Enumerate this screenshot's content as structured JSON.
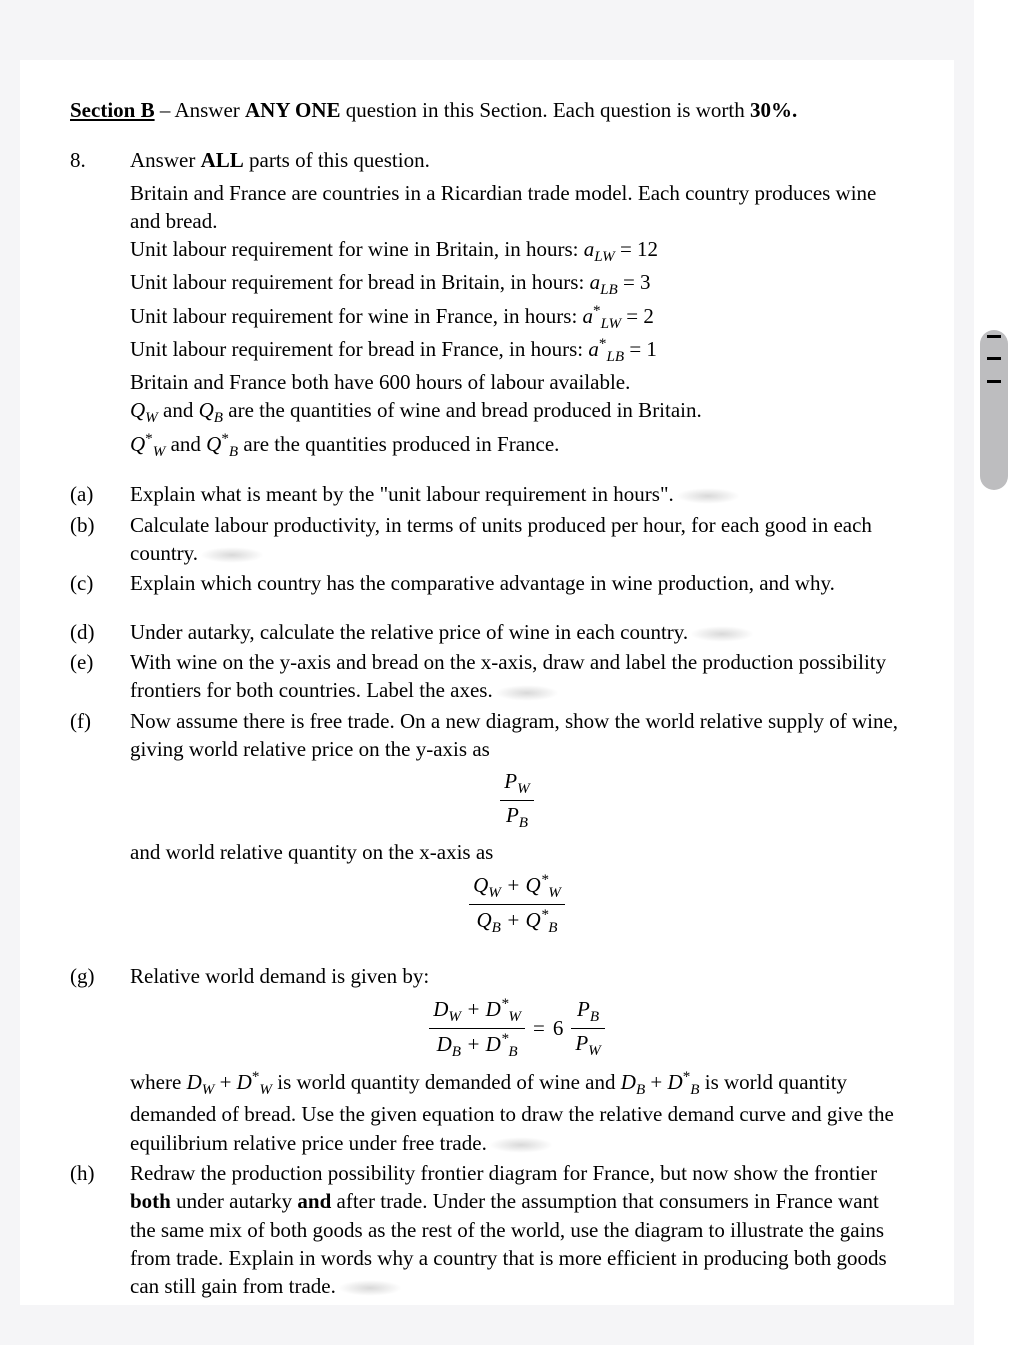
{
  "section": {
    "label": "Section B",
    "separator": " – ",
    "instruction_pre": "Answer ",
    "instruction_bold": "ANY ONE",
    "instruction_mid": " question in this Section. Each question is worth ",
    "percent": "30%.",
    "question_number": "8.",
    "q_instruction_pre": "Answer ",
    "q_instruction_bold": "ALL",
    "q_instruction_post": " parts of this question."
  },
  "intro": {
    "l1": "Britain and France are countries in a Ricardian trade model. Each country produces wine and bread.",
    "l2_pre": "Unit labour requirement for wine in Britain, in hours: ",
    "l2_sym": "a",
    "l2_sub": "LW",
    "l2_eq": " = 12",
    "l3_pre": "Unit labour requirement for bread in Britain, in hours: ",
    "l3_sym": "a",
    "l3_sub": "LB",
    "l3_eq": " = 3",
    "l4_pre": "Unit labour requirement for wine in France, in hours: ",
    "l4_sym": "a",
    "l4_sup": "*",
    "l4_sub": "LW",
    "l4_eq": " = 2",
    "l5_pre": "Unit labour requirement for bread in France, in hours: ",
    "l5_sym": "a",
    "l5_sup": "*",
    "l5_sub": "LB",
    "l5_eq": " = 1",
    "l6": "Britain and France both have 600 hours of labour available.",
    "l7_q1": "Q",
    "l7_sub1": "W",
    "l7_and": " and ",
    "l7_q2": "Q",
    "l7_sub2": "B",
    "l7_post": " are the quantities of wine and bread produced in Britain.",
    "l8_q1": "Q",
    "l8_sup1": "*",
    "l8_sub1": "W",
    "l8_and": " and ",
    "l8_q2": "Q",
    "l8_sup2": "*",
    "l8_sub2": "B",
    "l8_post": " are the quantities produced in France."
  },
  "parts": {
    "a": {
      "label": "(a)",
      "text": "Explain what is meant by the \"unit labour requirement in hours\"."
    },
    "b": {
      "label": "(b)",
      "text": "Calculate labour productivity, in terms of units produced per hour, for each good in each country."
    },
    "c": {
      "label": "(c)",
      "text": "Explain which country has the comparative advantage in wine production, and why."
    },
    "d": {
      "label": "(d)",
      "text": "Under autarky, calculate the relative price of wine in each country."
    },
    "e": {
      "label": "(e)",
      "text": "With wine on the y-axis and bread on the x-axis, draw and label the production possibility frontiers for both countries. Label the axes."
    },
    "f": {
      "label": "(f)",
      "text1": "Now assume there is free trade. On a new diagram, show the world relative supply of wine, giving world relative price on the y-axis as",
      "frac1_num_sym": "P",
      "frac1_num_sub": "W",
      "frac1_den_sym": "P",
      "frac1_den_sub": "B",
      "text2": "and world relative quantity on the x-axis as",
      "frac2_num_a": "Q",
      "frac2_num_a_sub": "W",
      "frac2_plus": " + ",
      "frac2_num_b": "Q",
      "frac2_num_b_sup": "*",
      "frac2_num_b_sub": "W",
      "frac2_den_a": "Q",
      "frac2_den_a_sub": "B",
      "frac2_den_b": "Q",
      "frac2_den_b_sup": "*",
      "frac2_den_b_sub": "B"
    },
    "g": {
      "label": "(g)",
      "text1": "Relative world demand is given by:",
      "eq_lhs_num_a": "D",
      "eq_lhs_num_a_sub": "W",
      "eq_plus": " + ",
      "eq_lhs_num_b": "D",
      "eq_lhs_num_b_sup": "*",
      "eq_lhs_num_b_sub": "W",
      "eq_lhs_den_a": "D",
      "eq_lhs_den_a_sub": "B",
      "eq_lhs_den_b": "D",
      "eq_lhs_den_b_sup": "*",
      "eq_lhs_den_b_sub": "B",
      "eq_equals": " = ",
      "eq_coef": "6",
      "eq_rhs_num_sym": "P",
      "eq_rhs_num_sub": "B",
      "eq_rhs_den_sym": "P",
      "eq_rhs_den_sub": "W",
      "text2_pre": "where ",
      "t2_a": "D",
      "t2_a_sub": "W",
      "t2_plus": " + ",
      "t2_b": "D",
      "t2_b_sup": "*",
      "t2_b_sub": "W",
      "text2_mid": " is world quantity demanded of wine and ",
      "t2_c": "D",
      "t2_c_sub": "B",
      "t2_d": "D",
      "t2_d_sup": "*",
      "t2_d_sub": "B",
      "text2_post": " is world quantity demanded of bread. Use the given equation to draw the relative demand curve and give the equilibrium relative price under free trade."
    },
    "h": {
      "label": "(h)",
      "text_pre": "Redraw the production possibility frontier diagram for France, but now show the frontier ",
      "bold1": "both",
      "text_mid1": " under autarky ",
      "bold2": "and",
      "text_post": " after trade. Under the assumption that consumers in France want the same mix of both goods as the rest of the world, use the diagram to illustrate the gains from trade. Explain in words why a country that is more efficient in producing both goods can still gain from trade."
    }
  }
}
